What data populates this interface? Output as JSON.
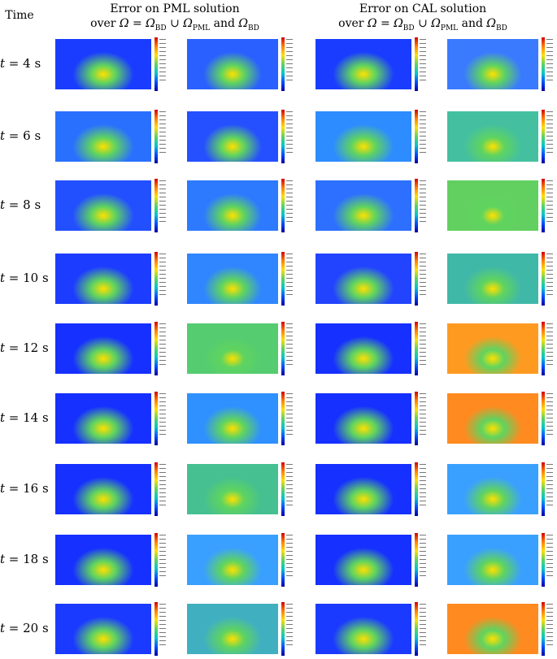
{
  "header": {
    "time": "Time",
    "pml_line1": "Error on PML solution",
    "pml_line2_prefix": "over ",
    "cal_line1": "Error on CAL solution",
    "cal_line2_prefix": "over "
  },
  "rows": [
    {
      "t": "4",
      "unit": "s"
    },
    {
      "t": "6",
      "unit": "s"
    },
    {
      "t": "8",
      "unit": "s"
    },
    {
      "t": "10",
      "unit": "s"
    },
    {
      "t": "12",
      "unit": "s"
    },
    {
      "t": "14",
      "unit": "s"
    },
    {
      "t": "16",
      "unit": "s"
    },
    {
      "t": "18",
      "unit": "s"
    },
    {
      "t": "20",
      "unit": "s"
    }
  ],
  "colormap": [
    "#0000a0",
    "#0050ff",
    "#00c8c8",
    "#5fd45f",
    "#ffe000",
    "#ff7f00",
    "#d40000"
  ]
}
